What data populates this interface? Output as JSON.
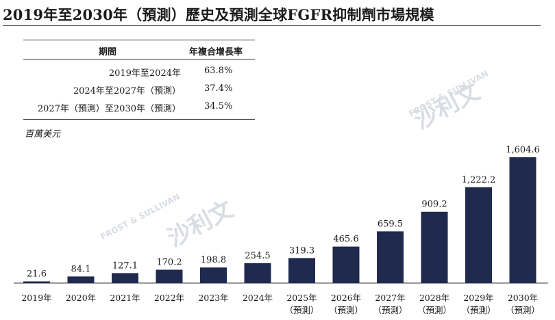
{
  "title": "2019年至2030年（預測）歷史及預測全球FGFR抑制劑市場規模",
  "cagr_table": {
    "header_period": "期間",
    "header_rate": "年複合增長率",
    "rows": [
      {
        "period": "2019年至2024年",
        "rate": "63.8%"
      },
      {
        "period": "2024年至2027年（預測）",
        "rate": "37.4%"
      },
      {
        "period": "2027年（預測）至2030年（預測）",
        "rate": "34.5%"
      }
    ]
  },
  "unit_label": "百萬美元",
  "watermark": {
    "latin": "FROST & SULLIVAN",
    "cjk": "沙利文"
  },
  "colors": {
    "bar": "#1f2a4e"
  },
  "chart_data": {
    "type": "bar",
    "categories": [
      "2019年",
      "2020年",
      "2021年",
      "2022年",
      "2023年",
      "2024年",
      "2025年",
      "2026年",
      "2027年",
      "2028年",
      "2029年",
      "2030年"
    ],
    "category_notes": [
      "",
      "",
      "",
      "",
      "",
      "",
      "（預測）",
      "（預測）",
      "（預測）",
      "（預測）",
      "（預測）",
      "（預測）"
    ],
    "values": [
      21.6,
      84.1,
      127.1,
      170.2,
      198.8,
      254.5,
      319.3,
      465.6,
      659.5,
      909.2,
      1222.2,
      1604.6
    ],
    "value_labels": [
      "21.6",
      "84.1",
      "127.1",
      "170.2",
      "198.8",
      "254.5",
      "319.3",
      "465.6",
      "659.5",
      "909.2",
      "1,222.2",
      "1,604.6"
    ],
    "ylabel": "百萬美元",
    "ylim": [
      0,
      1604.6
    ],
    "grid": false,
    "legend": "none"
  }
}
